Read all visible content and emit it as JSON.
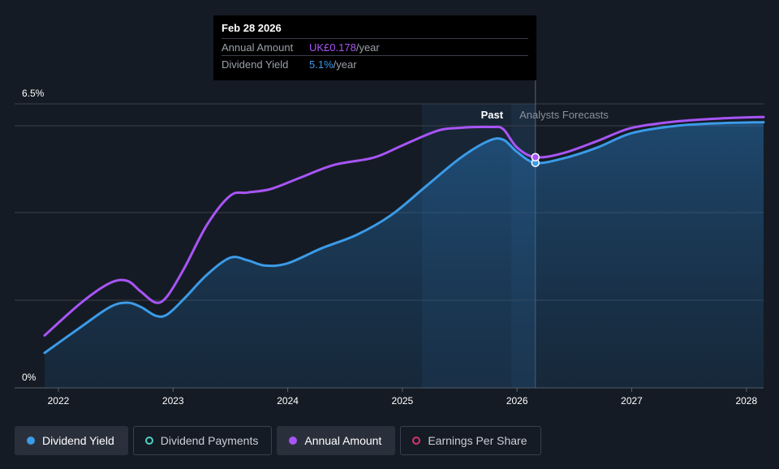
{
  "tooltip": {
    "date": "Feb 28 2026",
    "rows": [
      {
        "label": "Annual Amount",
        "value": "UK£0.178",
        "suffix": "/year"
      },
      {
        "label": "Dividend Yield",
        "value": "5.1%",
        "suffix": "/year"
      }
    ]
  },
  "regions": {
    "past": "Past",
    "forecast": "Analysts Forecasts"
  },
  "legend": [
    {
      "label": "Dividend Yield",
      "color": "#3b9be8",
      "active": true,
      "filled": true
    },
    {
      "label": "Dividend Payments",
      "color": "#4fd1c5",
      "active": false,
      "filled": false
    },
    {
      "label": "Annual Amount",
      "color": "#a855f7",
      "active": true,
      "filled": true
    },
    {
      "label": "Earnings Per Share",
      "color": "#d6336c",
      "active": false,
      "filled": false
    }
  ],
  "chart_data": {
    "type": "line",
    "y_tick_labels": [
      "6.5%",
      "0%"
    ],
    "ylim": [
      0,
      6.5
    ],
    "xlim": [
      2021.88,
      2028.15
    ],
    "x_tick_labels": [
      "2022",
      "2023",
      "2024",
      "2025",
      "2026",
      "2027",
      "2028"
    ],
    "past_start": 2025.17,
    "forecast_start": 2025.95,
    "cursor_x": 2026.16,
    "grid": true,
    "series": [
      {
        "name": "Dividend Yield",
        "color": "#3b9be8",
        "area": true,
        "points": [
          [
            2021.88,
            0.8
          ],
          [
            2022.2,
            1.4
          ],
          [
            2022.45,
            1.85
          ],
          [
            2022.6,
            1.95
          ],
          [
            2022.72,
            1.85
          ],
          [
            2022.85,
            1.65
          ],
          [
            2022.95,
            1.68
          ],
          [
            2023.1,
            2.05
          ],
          [
            2023.3,
            2.6
          ],
          [
            2023.5,
            2.98
          ],
          [
            2023.65,
            2.92
          ],
          [
            2023.8,
            2.8
          ],
          [
            2024.0,
            2.85
          ],
          [
            2024.3,
            3.2
          ],
          [
            2024.6,
            3.5
          ],
          [
            2024.9,
            3.95
          ],
          [
            2025.2,
            4.6
          ],
          [
            2025.5,
            5.25
          ],
          [
            2025.75,
            5.65
          ],
          [
            2025.88,
            5.68
          ],
          [
            2026.0,
            5.4
          ],
          [
            2026.16,
            5.15
          ],
          [
            2026.4,
            5.25
          ],
          [
            2026.7,
            5.5
          ],
          [
            2027.0,
            5.83
          ],
          [
            2027.4,
            6.0
          ],
          [
            2027.8,
            6.06
          ],
          [
            2028.15,
            6.08
          ]
        ]
      },
      {
        "name": "Annual Amount",
        "color": "#a855f7",
        "area": false,
        "points": [
          [
            2021.88,
            1.2
          ],
          [
            2022.2,
            1.95
          ],
          [
            2022.45,
            2.4
          ],
          [
            2022.6,
            2.45
          ],
          [
            2022.72,
            2.2
          ],
          [
            2022.85,
            1.95
          ],
          [
            2022.95,
            2.1
          ],
          [
            2023.1,
            2.75
          ],
          [
            2023.3,
            3.75
          ],
          [
            2023.5,
            4.4
          ],
          [
            2023.65,
            4.47
          ],
          [
            2023.85,
            4.55
          ],
          [
            2024.1,
            4.8
          ],
          [
            2024.4,
            5.1
          ],
          [
            2024.75,
            5.27
          ],
          [
            2025.0,
            5.55
          ],
          [
            2025.3,
            5.88
          ],
          [
            2025.5,
            5.95
          ],
          [
            2025.78,
            5.97
          ],
          [
            2025.88,
            5.92
          ],
          [
            2026.0,
            5.5
          ],
          [
            2026.16,
            5.28
          ],
          [
            2026.4,
            5.37
          ],
          [
            2026.7,
            5.65
          ],
          [
            2027.0,
            5.95
          ],
          [
            2027.4,
            6.1
          ],
          [
            2027.8,
            6.17
          ],
          [
            2028.15,
            6.2
          ]
        ]
      }
    ]
  }
}
